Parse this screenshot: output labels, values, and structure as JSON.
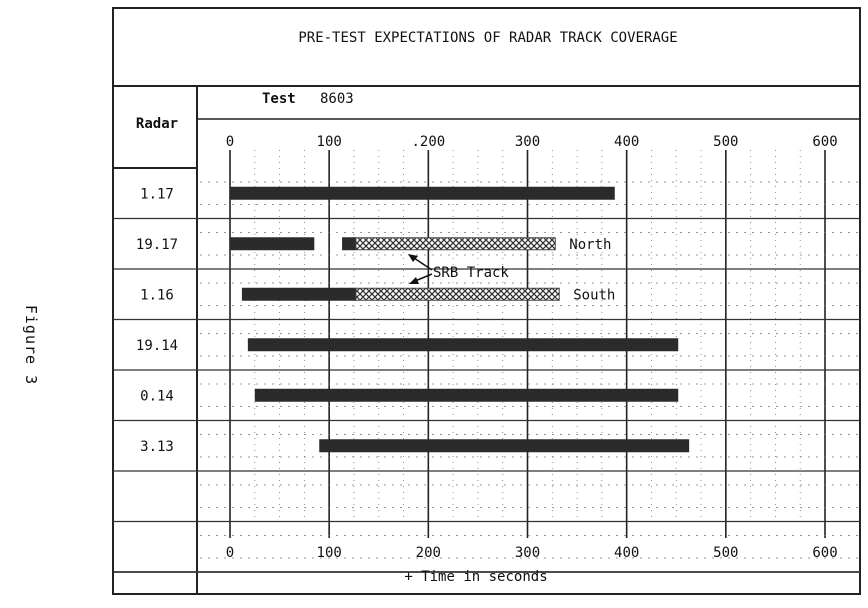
{
  "figure_label": "Figure 3",
  "chart_data": {
    "type": "gantt-bar",
    "title": "PRE-TEST EXPECTATIONS OF RADAR TRACK COVERAGE",
    "subtitle_label": "Test",
    "subtitle_value": "8603",
    "row_header": "Radar",
    "xlabel": "+ Time in seconds",
    "xlim": [
      0,
      600
    ],
    "xticks": [
      0,
      100,
      200,
      300,
      400,
      500,
      600
    ],
    "xtick_labels_top": [
      "0",
      "100",
      ".200",
      "300",
      "400",
      "500",
      "600"
    ],
    "xtick_labels_bottom": [
      "0",
      "100",
      "200",
      "300",
      "400",
      "500",
      "600"
    ],
    "grid": true,
    "rows": [
      {
        "radar": "1.17",
        "segments": [
          {
            "start": 0,
            "end": 388,
            "style": "solid"
          }
        ]
      },
      {
        "radar": "19.17",
        "segments": [
          {
            "start": 0,
            "end": 85,
            "style": "solid"
          },
          {
            "start": 113,
            "end": 127,
            "style": "solid"
          },
          {
            "start": 127,
            "end": 328,
            "style": "hatched"
          }
        ],
        "label": "North"
      },
      {
        "radar": "1.16",
        "segments": [
          {
            "start": 12,
            "end": 127,
            "style": "solid"
          },
          {
            "start": 127,
            "end": 332,
            "style": "hatched"
          }
        ],
        "label": "South"
      },
      {
        "radar": "19.14",
        "segments": [
          {
            "start": 18,
            "end": 452,
            "style": "solid"
          }
        ]
      },
      {
        "radar": "0.14",
        "segments": [
          {
            "start": 25,
            "end": 452,
            "style": "solid"
          }
        ]
      },
      {
        "radar": "3.13",
        "segments": [
          {
            "start": 90,
            "end": 463,
            "style": "solid"
          }
        ]
      },
      {
        "radar": "",
        "segments": []
      },
      {
        "radar": "",
        "segments": []
      }
    ],
    "annotation": "SRB Track",
    "colors": {
      "solid": "#2b2b2b",
      "hatched": "#444444",
      "grid": "#777777"
    }
  }
}
